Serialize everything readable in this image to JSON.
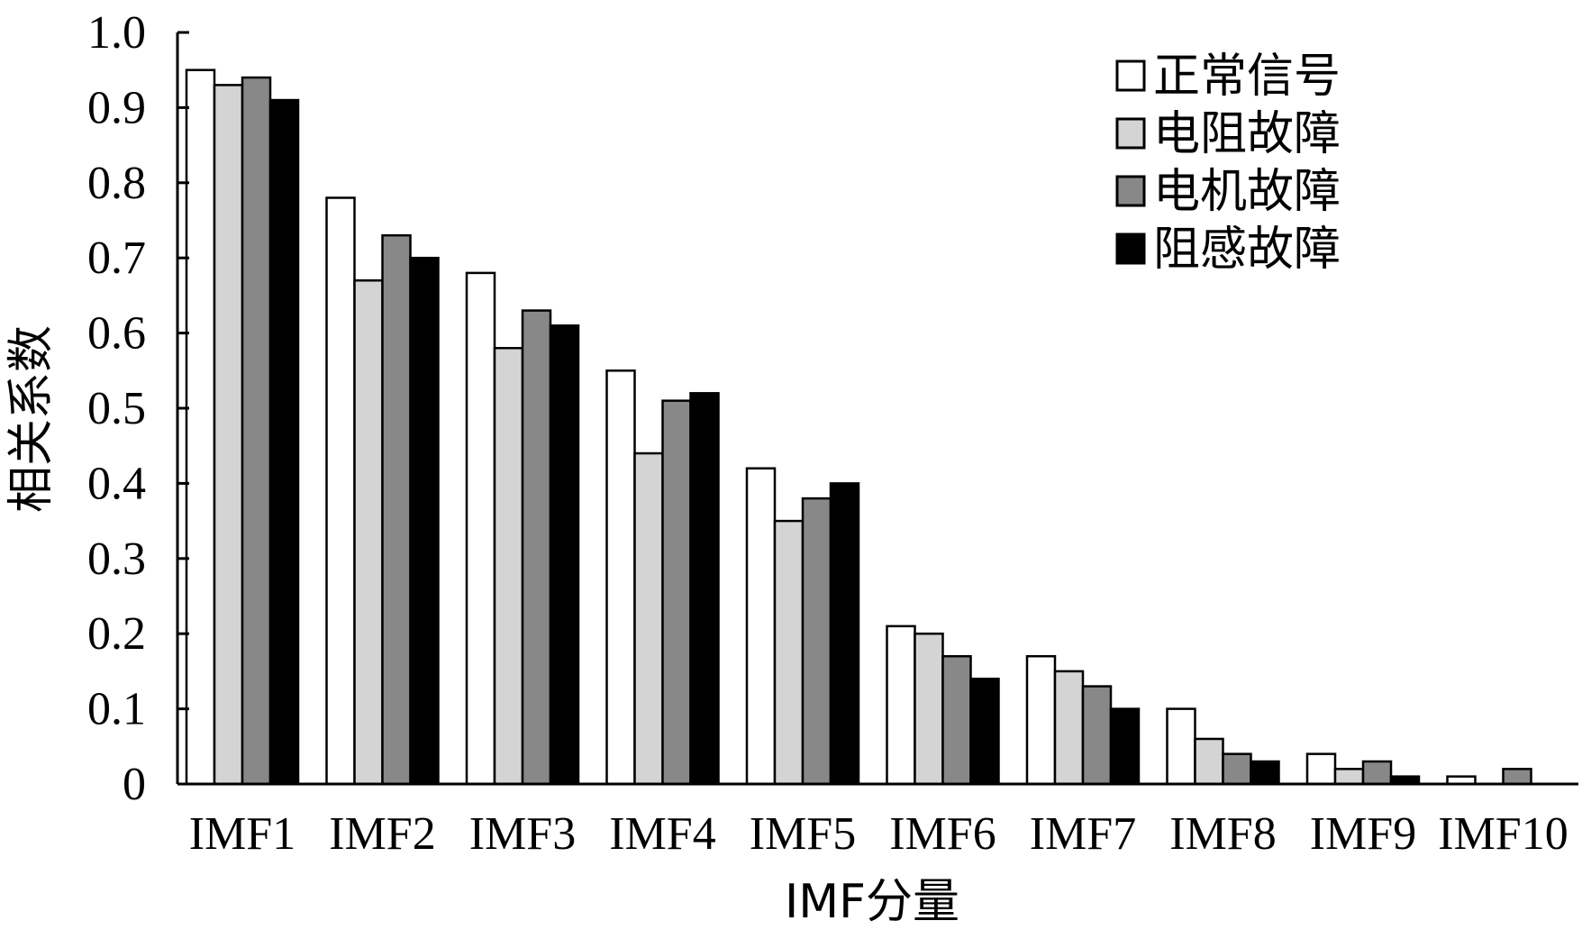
{
  "chart_data": {
    "type": "bar",
    "categories": [
      "IMF1",
      "IMF2",
      "IMF3",
      "IMF4",
      "IMF5",
      "IMF6",
      "IMF7",
      "IMF8",
      "IMF9",
      "IMF10"
    ],
    "series": [
      {
        "name": "正常信号",
        "color": "#ffffff",
        "values": [
          0.95,
          0.78,
          0.68,
          0.55,
          0.42,
          0.21,
          0.17,
          0.1,
          0.04,
          0.01
        ]
      },
      {
        "name": "电阻故障",
        "color": "#d4d4d4",
        "values": [
          0.93,
          0.67,
          0.58,
          0.44,
          0.35,
          0.2,
          0.15,
          0.06,
          0.02,
          0.0
        ]
      },
      {
        "name": "电机故障",
        "color": "#888888",
        "values": [
          0.94,
          0.73,
          0.63,
          0.51,
          0.38,
          0.17,
          0.13,
          0.04,
          0.03,
          0.02
        ]
      },
      {
        "name": "阻感故障",
        "color": "#000000",
        "values": [
          0.91,
          0.7,
          0.61,
          0.52,
          0.4,
          0.14,
          0.1,
          0.03,
          0.01,
          0.0
        ]
      }
    ],
    "yticks": [
      "0",
      "0.1",
      "0.2",
      "0.3",
      "0.4",
      "0.5",
      "0.6",
      "0.7",
      "0.8",
      "0.9",
      "1.0"
    ],
    "ylim": [
      0,
      1.0
    ],
    "xlabel": "IMF分量",
    "ylabel": "相关系数",
    "legend_position": "top-right",
    "grid": false
  }
}
